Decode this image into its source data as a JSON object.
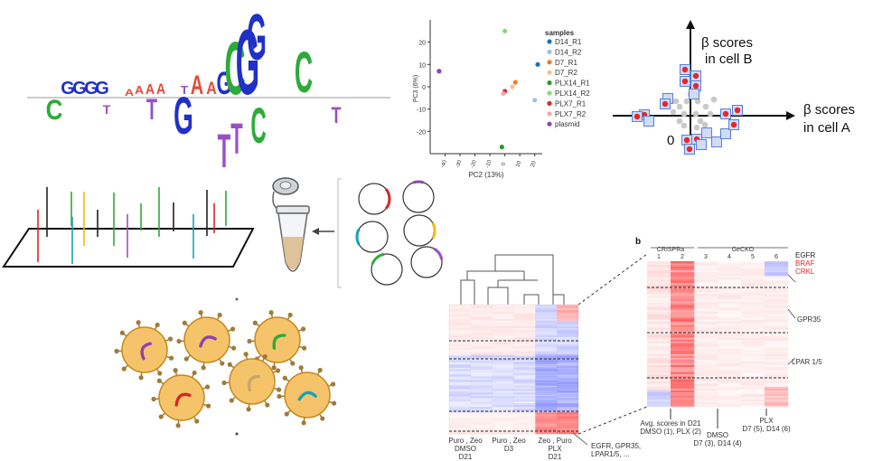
{
  "motif": {
    "letters": [
      {
        "ch": "C",
        "color": "#2eaa3a",
        "pos": "below"
      },
      {
        "ch": "G",
        "color": "#2030c8",
        "pos": "above"
      },
      {
        "ch": "G",
        "color": "#2030c8",
        "pos": "above"
      },
      {
        "ch": "G",
        "color": "#2030c8",
        "pos": "above"
      },
      {
        "ch": "G",
        "color": "#2030c8",
        "pos": "above"
      },
      {
        "ch": "T",
        "color": "#9b4fc7",
        "pos": "below"
      },
      {
        "ch": "A",
        "color": "#e84a3a",
        "pos": "above"
      },
      {
        "ch": "A",
        "color": "#e84a3a",
        "pos": "above"
      },
      {
        "ch": "A",
        "color": "#e84a3a",
        "pos": "above"
      },
      {
        "ch": "A",
        "color": "#e84a3a",
        "pos": "above"
      },
      {
        "ch": "T",
        "color": "#9b4fc7",
        "pos": "below"
      },
      {
        "ch": "T",
        "color": "#9b4fc7",
        "pos": "above"
      },
      {
        "ch": "A",
        "color": "#e84a3a",
        "pos": "above"
      },
      {
        "ch": "G",
        "color": "#2030c8",
        "pos": "below"
      },
      {
        "ch": "A",
        "color": "#e84a3a",
        "pos": "above"
      },
      {
        "ch": "G",
        "color": "#2030c8",
        "pos": "above"
      },
      {
        "ch": "C",
        "color": "#2eaa3a",
        "pos": "above"
      },
      {
        "ch": "G",
        "color": "#2030c8",
        "pos": "above"
      },
      {
        "ch": "G",
        "color": "#2030c8",
        "pos": "above"
      },
      {
        "ch": "T",
        "color": "#9b4fc7",
        "pos": "below"
      },
      {
        "ch": "C",
        "color": "#2eaa3a",
        "pos": "below"
      },
      {
        "ch": "T",
        "color": "#9b4fc7",
        "pos": "below"
      },
      {
        "ch": "C",
        "color": "#2eaa3a",
        "pos": "above"
      },
      {
        "ch": "T",
        "color": "#9b4fc7",
        "pos": "below"
      }
    ]
  },
  "pca": {
    "xlabel": "PC2 (13%)",
    "ylabel": "PC3 (6%)",
    "yticks": [
      "20",
      "10",
      "0",
      "-10",
      "-20"
    ],
    "xticks": [
      "-40",
      "-30",
      "-20",
      "-10",
      "0",
      "10",
      "20"
    ],
    "legend_title": "samples",
    "legend": [
      {
        "label": "D14_R1",
        "color": "#1f6fb0"
      },
      {
        "label": "D14_R2",
        "color": "#9cc3e6"
      },
      {
        "label": "D7_R1",
        "color": "#f07c1c"
      },
      {
        "label": "D7_R2",
        "color": "#f6c188"
      },
      {
        "label": "PLX14_R1",
        "color": "#2a9a2a"
      },
      {
        "label": "PLX14_R2",
        "color": "#8fd47a"
      },
      {
        "label": "PLX7_R1",
        "color": "#d62728"
      },
      {
        "label": "PLX7_R2",
        "color": "#f4a6a6"
      },
      {
        "label": "plasmid",
        "color": "#8e44ad"
      }
    ],
    "points": [
      {
        "x": 0,
        "y": 25,
        "series": "PLX14_R2"
      },
      {
        "x": 22,
        "y": 10,
        "series": "D14_R1"
      },
      {
        "x": 20,
        "y": -6,
        "series": "D14_R2"
      },
      {
        "x": 7,
        "y": 2,
        "series": "D7_R1"
      },
      {
        "x": 5,
        "y": 0,
        "series": "D7_R2"
      },
      {
        "x": -2,
        "y": -27,
        "series": "PLX14_R1"
      },
      {
        "x": 0,
        "y": -2,
        "series": "PLX7_R1"
      },
      {
        "x": -1,
        "y": -3,
        "series": "PLX7_R2"
      },
      {
        "x": -44,
        "y": 7,
        "series": "plasmid"
      }
    ]
  },
  "beta": {
    "ylabel_line1": "β scores",
    "ylabel_line2": "in cell B",
    "xlabel_line1": "β scores",
    "xlabel_line2": "in cell A",
    "origin": "0"
  },
  "heatmap_small": {
    "groups": [
      {
        "line1": "Puro , Zeo",
        "line2": "DMSO",
        "line3": "D21"
      },
      {
        "line1": "Puro , Zeo",
        "line2": "D3",
        "line3": ""
      },
      {
        "line1": "Zeo , Puro",
        "line2": "PLX",
        "line3": "D21"
      }
    ],
    "callout": "EGFR, GPR35,",
    "callout2": "LPAR1/5, ..."
  },
  "heatmap_big": {
    "panel_label": "b",
    "crispra_label": "CRISPRa",
    "gecko_label": "GeCKO",
    "columns": [
      "1",
      "2",
      "3",
      "4",
      "5",
      "6"
    ],
    "genes_top": [
      {
        "name": "EGFR",
        "color": "#222222"
      },
      {
        "name": "BRAF",
        "color": "#e8262a"
      },
      {
        "name": "CRKL",
        "color": "#e8262a"
      }
    ],
    "gene_gpr35": "GPR35",
    "gene_lpar": "LPAR 1/5",
    "bottom1_line1": "Avg. scores in D21",
    "bottom1_line2": "DMSO (1), PLX (2)",
    "bottom2_line1": "DMSO",
    "bottom2_line2": "D7 (3), D14 (4)",
    "bottom3_line1": "PLX",
    "bottom3_line2": "D7 (5), D14 (6)"
  },
  "colors": {
    "cell_fill": "#f5c46a",
    "cell_border": "#c8871f",
    "spike": "#a07a3a",
    "grna": [
      "#d62728",
      "#8e44ad",
      "#f2b61d",
      "#17a2b8",
      "#2eaa3a",
      "#9b4fc7"
    ]
  }
}
